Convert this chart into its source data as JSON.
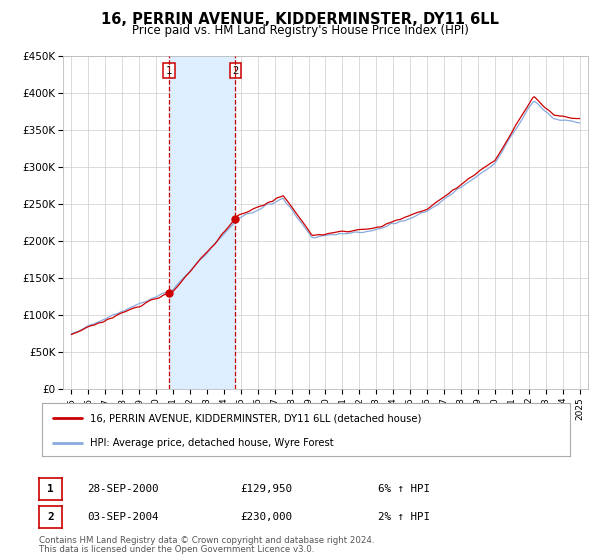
{
  "title": "16, PERRIN AVENUE, KIDDERMINSTER, DY11 6LL",
  "subtitle": "Price paid vs. HM Land Registry's House Price Index (HPI)",
  "ylim": [
    0,
    450000
  ],
  "yticks": [
    0,
    50000,
    100000,
    150000,
    200000,
    250000,
    300000,
    350000,
    400000,
    450000
  ],
  "ytick_labels": [
    "£0",
    "£50K",
    "£100K",
    "£150K",
    "£200K",
    "£250K",
    "£300K",
    "£350K",
    "£400K",
    "£450K"
  ],
  "xlim_start": 1994.5,
  "xlim_end": 2025.5,
  "xticks": [
    1995,
    1996,
    1997,
    1998,
    1999,
    2000,
    2001,
    2002,
    2003,
    2004,
    2005,
    2006,
    2007,
    2008,
    2009,
    2010,
    2011,
    2012,
    2013,
    2014,
    2015,
    2016,
    2017,
    2018,
    2019,
    2020,
    2021,
    2022,
    2023,
    2024,
    2025
  ],
  "red_line_color": "#cc0000",
  "blue_line_color": "#88aadd",
  "shade_color": "#ddeeff",
  "marker_color": "#cc0000",
  "transaction1_x": 2000.75,
  "transaction1_y": 129950,
  "transaction2_x": 2004.67,
  "transaction2_y": 230000,
  "vline1_x": 2000.75,
  "vline2_x": 2004.67,
  "legend_line1": "16, PERRIN AVENUE, KIDDERMINSTER, DY11 6LL (detached house)",
  "legend_line2": "HPI: Average price, detached house, Wyre Forest",
  "table_row1_date": "28-SEP-2000",
  "table_row1_price": "£129,950",
  "table_row1_hpi": "6% ↑ HPI",
  "table_row2_date": "03-SEP-2004",
  "table_row2_price": "£230,000",
  "table_row2_hpi": "2% ↑ HPI",
  "footer_text1": "Contains HM Land Registry data © Crown copyright and database right 2024.",
  "footer_text2": "This data is licensed under the Open Government Licence v3.0.",
  "background_color": "#ffffff",
  "grid_color": "#cccccc"
}
